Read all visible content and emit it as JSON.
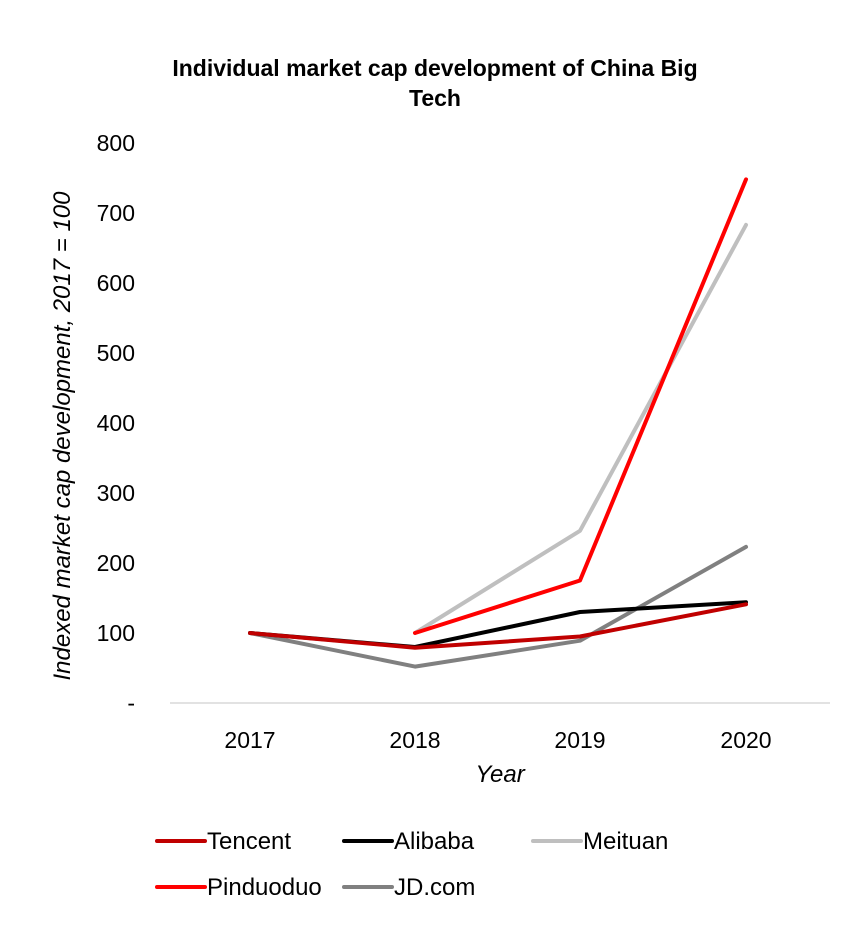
{
  "chart_data": {
    "type": "line",
    "title_lines": [
      "Individual market cap development of China Big",
      "Tech"
    ],
    "xlabel": "Year",
    "ylabel": "Indexed market cap development, 2017 = 100",
    "categories": [
      "2017",
      "2018",
      "2019",
      "2020"
    ],
    "y_ticks": [
      "-",
      "100",
      "200",
      "300",
      "400",
      "500",
      "600",
      "700",
      "800"
    ],
    "ylim": [
      0,
      800
    ],
    "grid": false,
    "legend_position": "bottom",
    "series": [
      {
        "name": "Tencent",
        "color": "#C00000",
        "values": [
          100,
          79,
          95,
          141
        ]
      },
      {
        "name": "Alibaba",
        "color": "#000000",
        "values": [
          100,
          80,
          130,
          144
        ]
      },
      {
        "name": "Meituan",
        "color": "#BFBFBF",
        "values": [
          null,
          100,
          246,
          683
        ]
      },
      {
        "name": "Pinduoduo",
        "color": "#FF0000",
        "values": [
          null,
          100,
          175,
          748
        ]
      },
      {
        "name": "JD.com",
        "color": "#808080",
        "values": [
          100,
          52,
          89,
          223
        ]
      }
    ]
  }
}
